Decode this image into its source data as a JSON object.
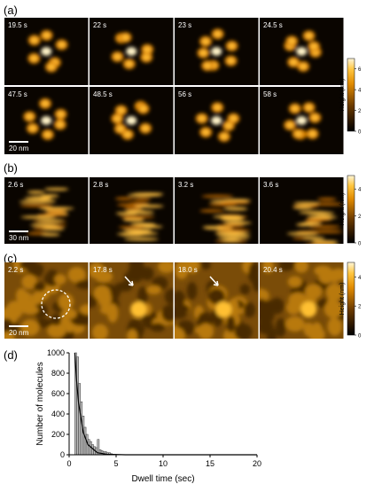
{
  "panels": [
    {
      "label": "(a)",
      "times": [
        [
          "19.5 s",
          "22 s",
          "23 s",
          "24.5 s"
        ],
        [
          "47.5 s",
          "48.5 s",
          "56 s",
          "58 s"
        ]
      ],
      "scale_bar": "20 nm",
      "colorbar": {
        "label": "Height (nm)",
        "lim": [
          0,
          7
        ],
        "ticks": [
          0,
          2,
          4,
          6
        ]
      }
    },
    {
      "label": "(b)",
      "times": [
        [
          "2.6 s",
          "2.8 s",
          "3.2 s",
          "3.6 s"
        ]
      ],
      "scale_bar": "30 nm",
      "colorbar": {
        "label": "Height (nm)",
        "lim": [
          0,
          5
        ],
        "ticks": [
          0,
          2,
          4
        ]
      }
    },
    {
      "label": "(c)",
      "times": [
        [
          "2.2 s",
          "17.8 s",
          "18.0 s",
          "20.4 s"
        ]
      ],
      "scale_bar": "20 nm",
      "colorbar": {
        "label": "Height (nm)",
        "lim": [
          0,
          5
        ],
        "ticks": [
          0,
          2,
          4
        ]
      }
    }
  ],
  "chart_data": {
    "type": "histogram",
    "label": "(d)",
    "x_label": "Dwell time (sec)",
    "y_label": "Number of molecules",
    "bins": [
      0.6,
      0.8,
      1.0,
      1.2,
      1.4,
      1.6,
      1.8,
      2.0,
      2.2,
      2.4,
      2.6,
      2.8,
      3.0,
      3.2,
      3.4,
      3.6,
      3.8,
      4.0,
      4.2,
      4.4,
      4.6
    ],
    "values": [
      1000,
      960,
      700,
      520,
      380,
      270,
      200,
      150,
      130,
      100,
      80,
      70,
      150,
      50,
      40,
      30,
      30,
      20,
      20,
      10
    ],
    "color": "#bdbdbd",
    "fit": {
      "x": [
        0.6,
        0.8,
        1.0,
        1.5,
        2,
        3,
        4,
        6,
        10,
        20
      ],
      "values": [
        1000,
        720,
        510,
        220,
        100,
        20,
        5,
        0,
        0,
        0
      ],
      "color": "#000000"
    },
    "xlim": [
      0,
      20
    ],
    "xticks": [
      0,
      5,
      10,
      15,
      20
    ],
    "ylim": [
      0,
      1000
    ],
    "yticks": [
      0,
      200,
      400,
      600,
      800,
      1000
    ]
  }
}
